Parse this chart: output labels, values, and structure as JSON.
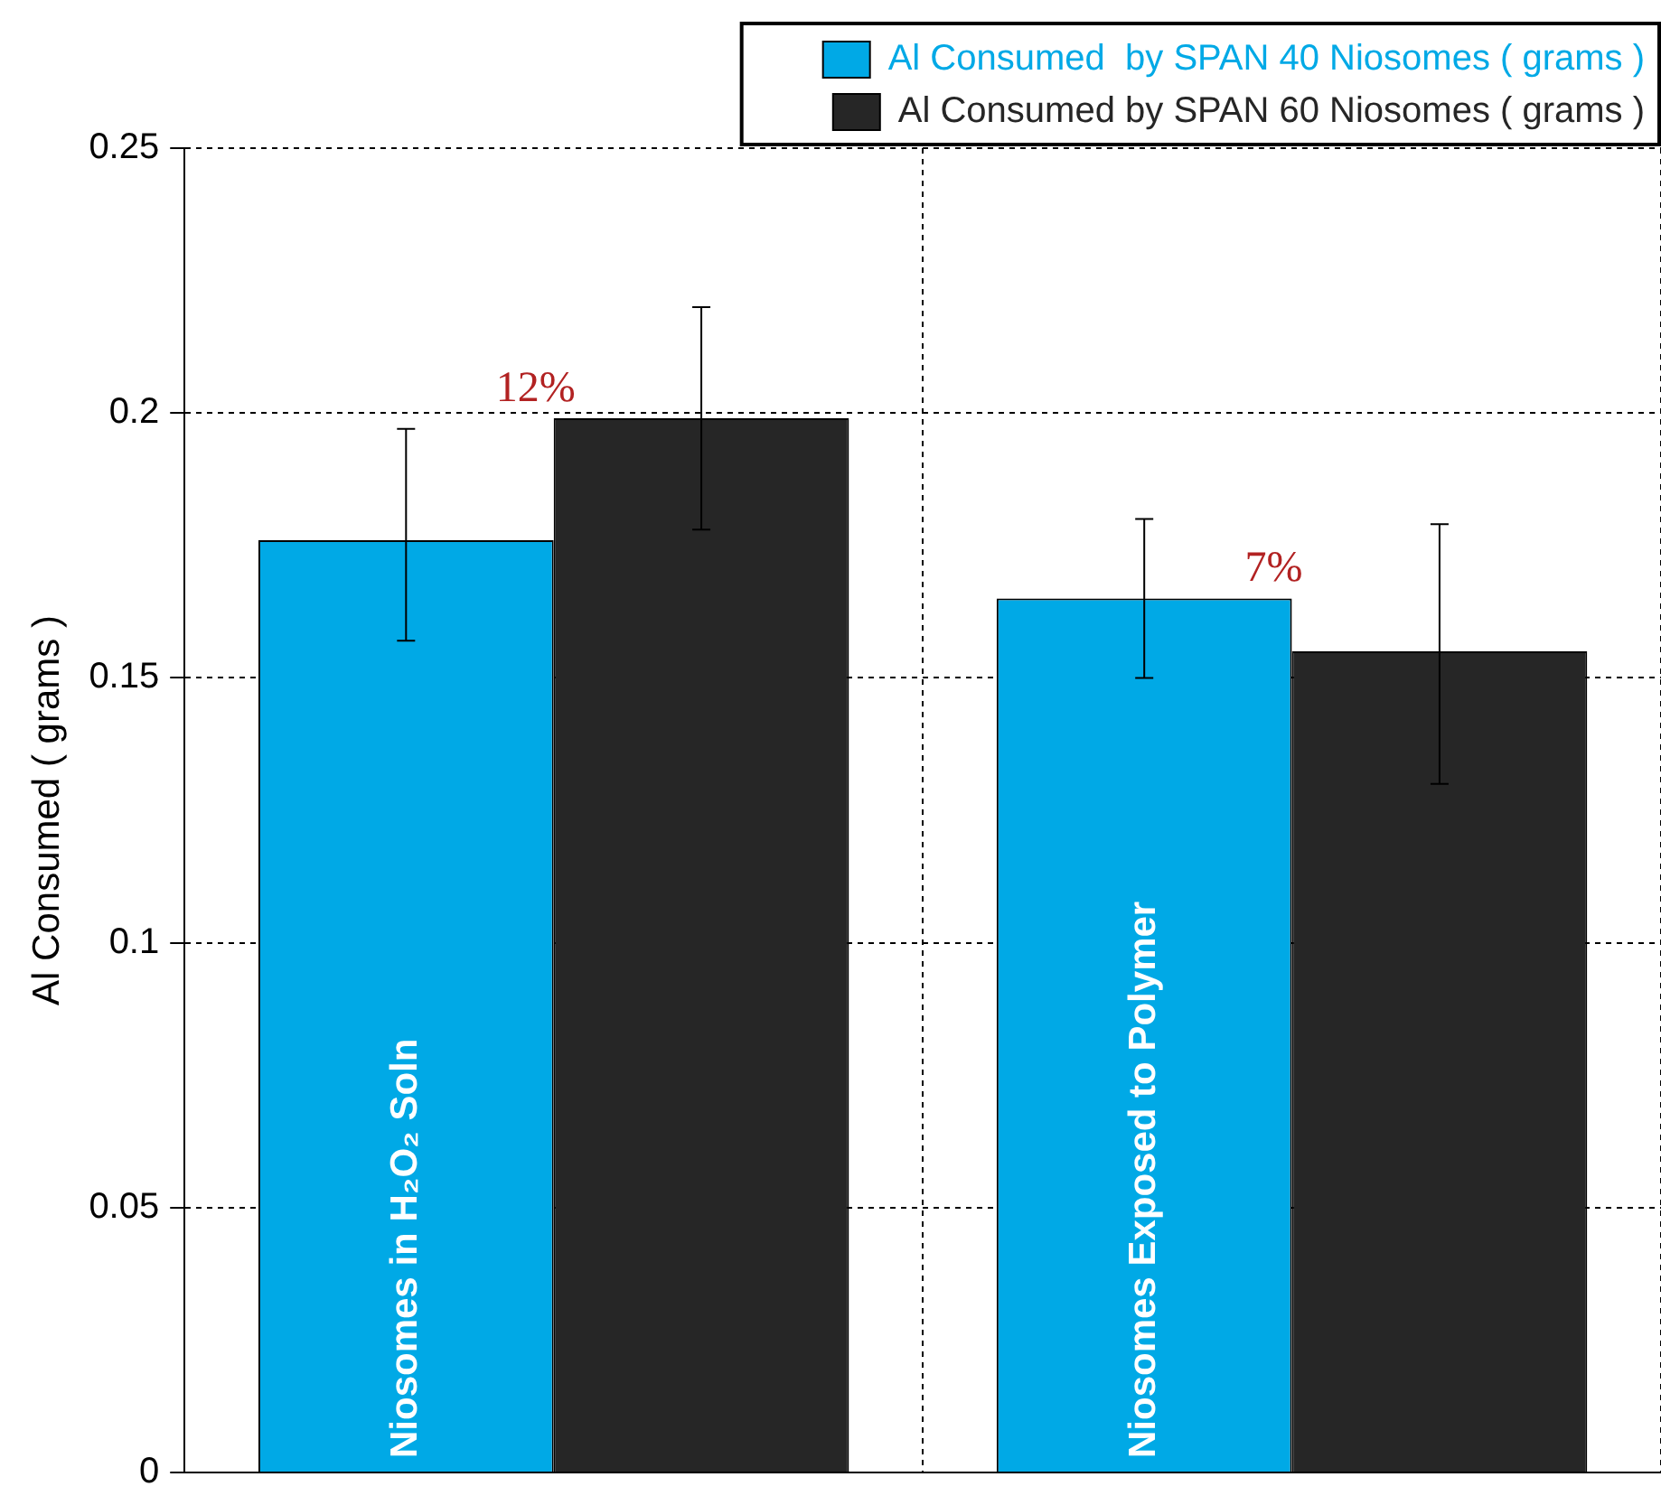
{
  "chart_data": {
    "type": "bar",
    "ylabel": "Al Consumed ( grams )",
    "categories": [
      "Niosomes in H₂O₂ Soln",
      "Niosomes Exposed to Polymer"
    ],
    "series": [
      {
        "name": "Al Consumed  by SPAN 40 Niosomes ( grams )",
        "color": "#00a9e6",
        "values": [
          0.176,
          0.165
        ],
        "errors": [
          [
            0.157,
            0.197
          ],
          [
            0.15,
            0.18
          ]
        ]
      },
      {
        "name": "Al Consumed by SPAN 60 Niosomes ( grams )",
        "color": "#262626",
        "values": [
          0.199,
          0.155
        ],
        "errors": [
          [
            0.178,
            0.22
          ],
          [
            0.13,
            0.179
          ]
        ]
      }
    ],
    "ylim": [
      0,
      0.25
    ],
    "yticks": [
      0,
      0.05,
      0.1,
      0.15,
      0.2,
      0.25
    ],
    "grid": true,
    "legend": "top right",
    "annotations": [
      "12%",
      "7%"
    ]
  }
}
